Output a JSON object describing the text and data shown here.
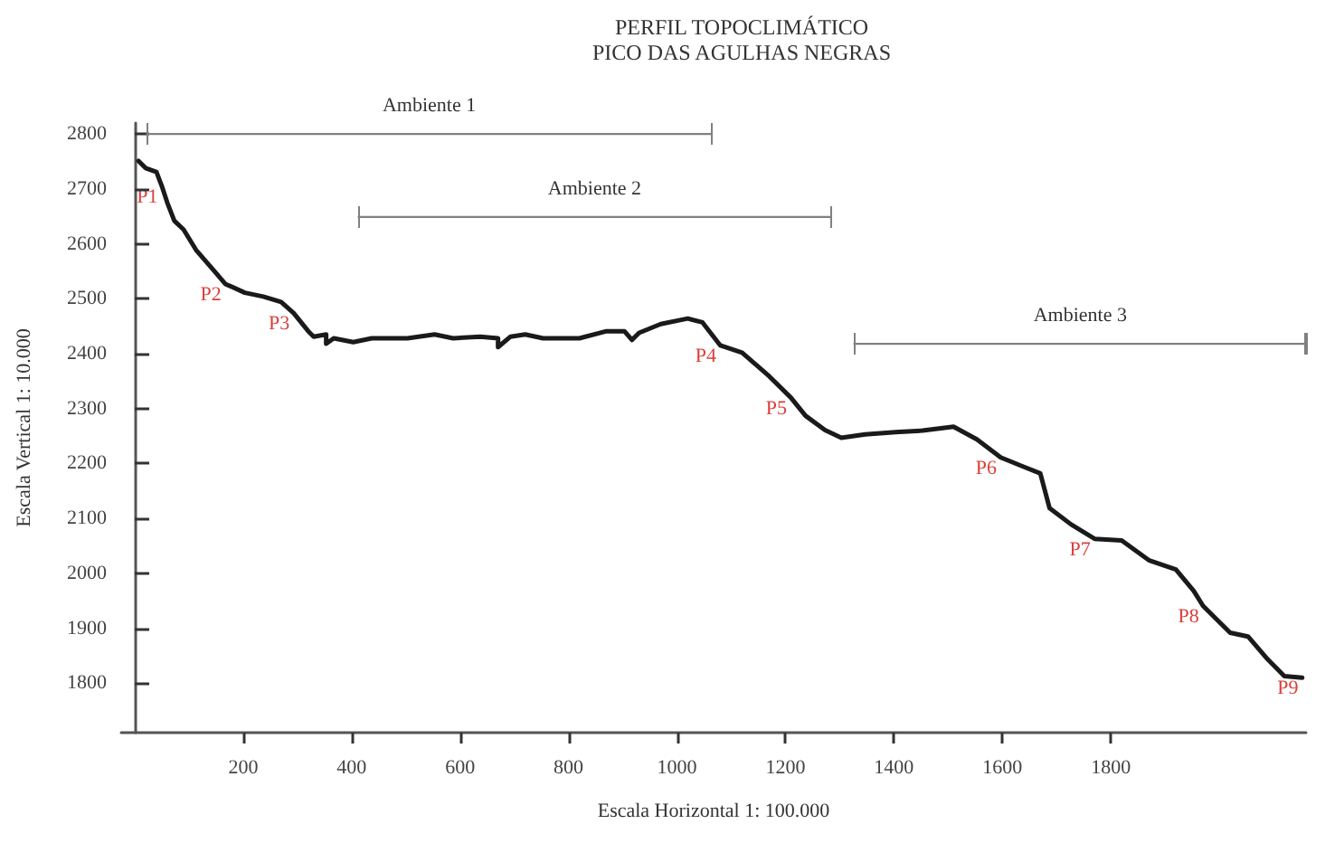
{
  "chart_data": {
    "type": "line",
    "title": "PERFIL TOPOCLIMÁTICO",
    "subtitle": "PICO DAS AGULHAS NEGRAS",
    "xlabel": "Escala Horizontal 1: 100.000",
    "ylabel": "Escala Vertical 1: 10.000",
    "x": [
      7,
      20,
      40,
      50,
      60,
      73,
      90,
      113,
      147,
      167,
      203,
      237,
      270,
      293,
      320,
      330,
      353,
      353,
      367,
      403,
      437,
      503,
      553,
      587,
      637,
      670,
      670,
      693,
      720,
      753,
      820,
      870,
      903,
      917,
      930,
      970,
      1020,
      1047,
      1080,
      1120,
      1170,
      1210,
      1237,
      1273,
      1303,
      1347,
      1403,
      1453,
      1510,
      1553,
      1597,
      1637,
      1670,
      1687,
      1727,
      1770,
      1820,
      1870,
      1920,
      1953,
      1970,
      2020,
      2053,
      2087,
      2120,
      2153
    ],
    "series": [
      {
        "name": "Ambiente 1",
        "color": "#808080",
        "x": [
          23,
          1063
        ],
        "values": [
          2800,
          2800
        ]
      },
      {
        "name": "Ambiente 2",
        "color": "#808080",
        "x": [
          413,
          1283
        ],
        "values": [
          2649,
          2649
        ]
      },
      {
        "name": "Ambiente 3",
        "color": "#808080",
        "x": [
          1327,
          2160
        ],
        "values": [
          2418,
          2418
        ]
      },
      {
        "color": "#1a1a1a",
        "values": [
          2751,
          2738,
          2731,
          2705,
          2675,
          2642,
          2626,
          2589,
          2550,
          2527,
          2511,
          2504,
          2494,
          2474,
          2441,
          2431,
          2435,
          2418,
          2428,
          2421,
          2428,
          2428,
          2435,
          2428,
          2431,
          2428,
          2412,
          2431,
          2435,
          2428,
          2428,
          2441,
          2441,
          2425,
          2438,
          2454,
          2464,
          2457,
          2415,
          2402,
          2359,
          2320,
          2287,
          2261,
          2247,
          2253,
          2257,
          2260,
          2267,
          2244,
          2211,
          2195,
          2182,
          2119,
          2089,
          2063,
          2060,
          2024,
          2007,
          1968,
          1941,
          1892,
          1885,
          1846,
          1813,
          1810
        ]
      }
    ],
    "xlim": [
      -25,
      2160
    ],
    "ylim": [
      1710,
      2820
    ],
    "xticks": [
      200,
      400,
      600,
      800,
      1000,
      1200,
      1400,
      1600,
      1800
    ],
    "yticks": [
      1800,
      1900,
      2000,
      2100,
      2200,
      2300,
      2400,
      2500,
      2600,
      2700,
      2800
    ],
    "annotations": [
      {
        "text": "P1",
        "x": 50,
        "y": 2705
      },
      {
        "text": "P2",
        "x": 167,
        "y": 2527
      },
      {
        "text": "P3",
        "x": 293,
        "y": 2474
      },
      {
        "text": "P4",
        "x": 1080,
        "y": 2415
      },
      {
        "text": "P5",
        "x": 1210,
        "y": 2320
      },
      {
        "text": "P6",
        "x": 1597,
        "y": 2211
      },
      {
        "text": "P7",
        "x": 1770,
        "y": 2063
      },
      {
        "text": "P8",
        "x": 1970,
        "y": 1941
      },
      {
        "text": "P9",
        "x": 2153,
        "y": 1810
      }
    ],
    "grid": false,
    "marker": "none",
    "line_style": "solid"
  }
}
